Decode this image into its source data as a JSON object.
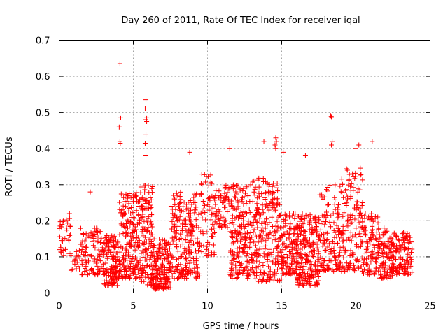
{
  "chart_data": {
    "type": "scatter",
    "title": "Day 260 of 2011, Rate Of TEC Index for receiver iqal",
    "xlabel": "GPS time / hours",
    "ylabel": "ROTI / TECUs",
    "xlim": [
      0,
      25
    ],
    "ylim": [
      0,
      0.7
    ],
    "x_ticks": [
      0,
      5,
      10,
      15,
      20,
      25
    ],
    "x_tick_labels": [
      "0",
      "5",
      "10",
      "15",
      "20",
      "25"
    ],
    "y_ticks": [
      0,
      0.1,
      0.2,
      0.3,
      0.4,
      0.5,
      0.6,
      0.7
    ],
    "y_tick_labels": [
      "0",
      "0.1",
      "0.2",
      "0.3",
      "0.4",
      "0.5",
      "0.6",
      "0.7"
    ],
    "grid": true,
    "marker": "plus",
    "color": "#ff0000",
    "x_range": [
      0,
      23.8
    ],
    "notable_points": [
      {
        "x": 4.1,
        "y": 0.635
      },
      {
        "x": 4.15,
        "y": 0.485
      },
      {
        "x": 4.05,
        "y": 0.46
      },
      {
        "x": 4.1,
        "y": 0.42
      },
      {
        "x": 4.12,
        "y": 0.415
      },
      {
        "x": 5.85,
        "y": 0.535
      },
      {
        "x": 5.8,
        "y": 0.51
      },
      {
        "x": 5.9,
        "y": 0.485
      },
      {
        "x": 5.85,
        "y": 0.48
      },
      {
        "x": 5.9,
        "y": 0.475
      },
      {
        "x": 5.85,
        "y": 0.44
      },
      {
        "x": 5.8,
        "y": 0.415
      },
      {
        "x": 5.85,
        "y": 0.38
      },
      {
        "x": 18.3,
        "y": 0.49
      },
      {
        "x": 18.35,
        "y": 0.488
      },
      {
        "x": 18.4,
        "y": 0.42
      },
      {
        "x": 18.35,
        "y": 0.41
      },
      {
        "x": 14.6,
        "y": 0.43
      },
      {
        "x": 14.65,
        "y": 0.42
      },
      {
        "x": 14.55,
        "y": 0.41
      },
      {
        "x": 14.6,
        "y": 0.4
      },
      {
        "x": 13.8,
        "y": 0.42
      },
      {
        "x": 21.1,
        "y": 0.42
      },
      {
        "x": 20.0,
        "y": 0.4
      },
      {
        "x": 20.2,
        "y": 0.41
      },
      {
        "x": 11.5,
        "y": 0.4
      },
      {
        "x": 8.8,
        "y": 0.39
      },
      {
        "x": 15.1,
        "y": 0.39
      },
      {
        "x": 16.6,
        "y": 0.38
      },
      {
        "x": 2.1,
        "y": 0.28
      },
      {
        "x": 0.2,
        "y": 0.19
      },
      {
        "x": 0.3,
        "y": 0.2
      },
      {
        "x": 0.5,
        "y": 0.18
      },
      {
        "x": 0.0,
        "y": 0.12
      },
      {
        "x": 0.1,
        "y": 0.13
      },
      {
        "x": 0.7,
        "y": 0.22
      }
    ],
    "clusters": [
      {
        "x_range": [
          0.0,
          0.8
        ],
        "y_range": [
          0.1,
          0.21
        ],
        "count": 30
      },
      {
        "x_range": [
          0.8,
          1.4
        ],
        "y_range": [
          0.06,
          0.12
        ],
        "count": 18
      },
      {
        "x_range": [
          1.4,
          3.0
        ],
        "y_range": [
          0.05,
          0.18
        ],
        "count": 110
      },
      {
        "x_range": [
          3.0,
          4.0
        ],
        "y_range": [
          0.02,
          0.16
        ],
        "count": 140
      },
      {
        "x_range": [
          4.0,
          5.5
        ],
        "y_range": [
          0.04,
          0.28
        ],
        "count": 220
      },
      {
        "x_range": [
          5.5,
          6.3
        ],
        "y_range": [
          0.02,
          0.3
        ],
        "count": 130
      },
      {
        "x_range": [
          6.3,
          7.5
        ],
        "y_range": [
          0.01,
          0.15
        ],
        "count": 180
      },
      {
        "x_range": [
          7.5,
          9.5
        ],
        "y_range": [
          0.04,
          0.28
        ],
        "count": 230
      },
      {
        "x_range": [
          9.5,
          10.5
        ],
        "y_range": [
          0.1,
          0.33
        ],
        "count": 70
      },
      {
        "x_range": [
          10.5,
          11.5
        ],
        "y_range": [
          0.18,
          0.3
        ],
        "count": 60
      },
      {
        "x_range": [
          11.5,
          13.0
        ],
        "y_range": [
          0.04,
          0.3
        ],
        "count": 200
      },
      {
        "x_range": [
          13.0,
          15.0
        ],
        "y_range": [
          0.03,
          0.32
        ],
        "count": 240
      },
      {
        "x_range": [
          15.0,
          16.0
        ],
        "y_range": [
          0.05,
          0.22
        ],
        "count": 120
      },
      {
        "x_range": [
          16.0,
          17.5
        ],
        "y_range": [
          0.02,
          0.22
        ],
        "count": 230
      },
      {
        "x_range": [
          17.5,
          19.0
        ],
        "y_range": [
          0.06,
          0.3
        ],
        "count": 140
      },
      {
        "x_range": [
          19.0,
          20.5
        ],
        "y_range": [
          0.06,
          0.35
        ],
        "count": 160
      },
      {
        "x_range": [
          20.5,
          21.5
        ],
        "y_range": [
          0.05,
          0.22
        ],
        "count": 90
      },
      {
        "x_range": [
          21.5,
          22.5
        ],
        "y_range": [
          0.04,
          0.18
        ],
        "count": 110
      },
      {
        "x_range": [
          22.5,
          23.8
        ],
        "y_range": [
          0.05,
          0.17
        ],
        "count": 120
      }
    ]
  }
}
